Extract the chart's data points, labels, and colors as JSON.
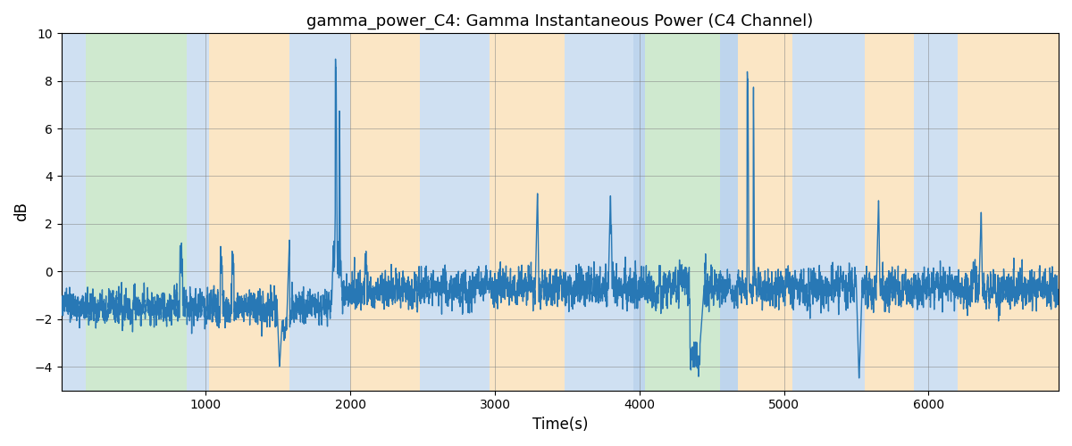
{
  "title": "gamma_power_C4: Gamma Instantaneous Power (C4 Channel)",
  "xlabel": "Time(s)",
  "ylabel": "dB",
  "xlim": [
    0,
    6900
  ],
  "ylim": [
    -5,
    10
  ],
  "yticks": [
    -4,
    -2,
    0,
    2,
    4,
    6,
    8,
    10
  ],
  "xticks": [
    1000,
    2000,
    3000,
    4000,
    5000,
    6000
  ],
  "line_color": "#2878b5",
  "line_width": 1.0,
  "background_regions": [
    {
      "start": 0,
      "end": 170,
      "color": "#a8c8e8",
      "alpha": 0.55
    },
    {
      "start": 170,
      "end": 870,
      "color": "#a8d8a8",
      "alpha": 0.55
    },
    {
      "start": 870,
      "end": 1020,
      "color": "#a8c8e8",
      "alpha": 0.55
    },
    {
      "start": 1020,
      "end": 1580,
      "color": "#f8c880",
      "alpha": 0.45
    },
    {
      "start": 1580,
      "end": 2000,
      "color": "#a8c8e8",
      "alpha": 0.55
    },
    {
      "start": 2000,
      "end": 2480,
      "color": "#f8c880",
      "alpha": 0.45
    },
    {
      "start": 2480,
      "end": 2960,
      "color": "#a8c8e8",
      "alpha": 0.55
    },
    {
      "start": 2960,
      "end": 3480,
      "color": "#f8c880",
      "alpha": 0.45
    },
    {
      "start": 3480,
      "end": 3960,
      "color": "#a8c8e8",
      "alpha": 0.55
    },
    {
      "start": 3960,
      "end": 4040,
      "color": "#a8c8e8",
      "alpha": 0.75
    },
    {
      "start": 4040,
      "end": 4560,
      "color": "#a8d8a8",
      "alpha": 0.55
    },
    {
      "start": 4560,
      "end": 4680,
      "color": "#a8c8e8",
      "alpha": 0.75
    },
    {
      "start": 4680,
      "end": 5060,
      "color": "#f8c880",
      "alpha": 0.45
    },
    {
      "start": 5060,
      "end": 5560,
      "color": "#a8c8e8",
      "alpha": 0.55
    },
    {
      "start": 5560,
      "end": 5900,
      "color": "#f8c880",
      "alpha": 0.45
    },
    {
      "start": 5900,
      "end": 6200,
      "color": "#a8c8e8",
      "alpha": 0.55
    },
    {
      "start": 6200,
      "end": 6900,
      "color": "#f8c880",
      "alpha": 0.45
    }
  ],
  "seed": 12345,
  "n_points": 6900
}
